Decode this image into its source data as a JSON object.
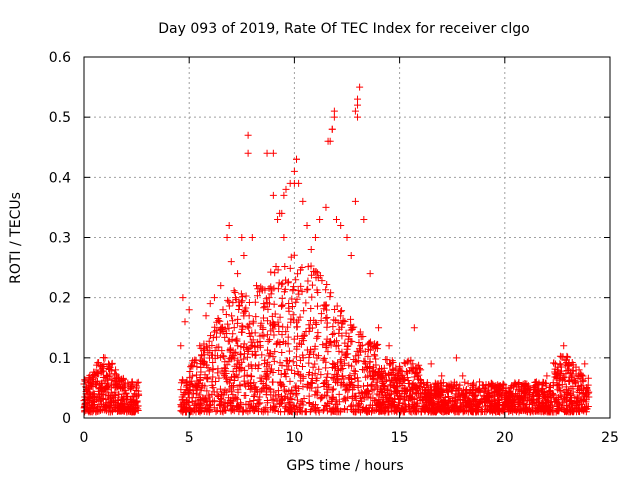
{
  "chart_data": {
    "type": "scatter",
    "title": "Day 093 of 2019, Rate Of TEC Index for receiver clgo",
    "xlabel": "GPS time / hours",
    "ylabel": "ROTI / TECUs",
    "xlim": [
      0,
      25
    ],
    "ylim": [
      0,
      0.6
    ],
    "xticks": [
      "0",
      "5",
      "10",
      "15",
      "20",
      "25"
    ],
    "yticks": [
      "0",
      "0.1",
      "0.2",
      "0.3",
      "0.4",
      "0.5",
      "0.6"
    ],
    "grid": true,
    "marker": "plus",
    "color": "#ff0000",
    "series": [
      {
        "name": "",
        "points": [
          [
            0.1,
            0.04
          ],
          [
            0.3,
            0.06
          ],
          [
            0.5,
            0.03
          ],
          [
            0.8,
            0.08
          ],
          [
            1.0,
            0.1
          ],
          [
            1.1,
            0.07
          ],
          [
            1.3,
            0.05
          ],
          [
            1.5,
            0.08
          ],
          [
            1.8,
            0.06
          ],
          [
            2.0,
            0.04
          ],
          [
            2.3,
            0.06
          ],
          [
            2.5,
            0.05
          ],
          [
            4.6,
            0.12
          ],
          [
            4.7,
            0.2
          ],
          [
            4.8,
            0.16
          ],
          [
            5.0,
            0.18
          ],
          [
            5.2,
            0.04
          ],
          [
            5.5,
            0.12
          ],
          [
            5.8,
            0.17
          ],
          [
            6.0,
            0.19
          ],
          [
            6.2,
            0.2
          ],
          [
            6.5,
            0.22
          ],
          [
            6.8,
            0.3
          ],
          [
            6.9,
            0.32
          ],
          [
            7.0,
            0.26
          ],
          [
            7.2,
            0.2
          ],
          [
            7.3,
            0.24
          ],
          [
            7.5,
            0.3
          ],
          [
            7.6,
            0.27
          ],
          [
            7.8,
            0.47
          ],
          [
            7.8,
            0.44
          ],
          [
            8.0,
            0.3
          ],
          [
            8.2,
            0.22
          ],
          [
            8.5,
            0.15
          ],
          [
            8.8,
            0.2
          ],
          [
            9.0,
            0.44
          ],
          [
            9.0,
            0.37
          ],
          [
            9.2,
            0.33
          ],
          [
            9.4,
            0.34
          ],
          [
            9.5,
            0.3
          ],
          [
            9.6,
            0.38
          ],
          [
            9.8,
            0.39
          ],
          [
            10.0,
            0.41
          ],
          [
            10.1,
            0.43
          ],
          [
            10.2,
            0.39
          ],
          [
            10.4,
            0.36
          ],
          [
            10.6,
            0.32
          ],
          [
            10.8,
            0.28
          ],
          [
            11.0,
            0.3
          ],
          [
            11.2,
            0.33
          ],
          [
            11.5,
            0.35
          ],
          [
            11.7,
            0.46
          ],
          [
            11.8,
            0.48
          ],
          [
            11.9,
            0.51
          ],
          [
            12.0,
            0.33
          ],
          [
            12.2,
            0.32
          ],
          [
            12.5,
            0.3
          ],
          [
            12.7,
            0.27
          ],
          [
            12.9,
            0.36
          ],
          [
            13.0,
            0.5
          ],
          [
            13.0,
            0.53
          ],
          [
            13.1,
            0.55
          ],
          [
            13.3,
            0.33
          ],
          [
            13.6,
            0.24
          ],
          [
            14.0,
            0.15
          ],
          [
            14.5,
            0.12
          ],
          [
            15.0,
            0.08
          ],
          [
            15.7,
            0.15
          ],
          [
            16.0,
            0.08
          ],
          [
            16.5,
            0.09
          ],
          [
            17.0,
            0.07
          ],
          [
            17.7,
            0.1
          ],
          [
            18.0,
            0.07
          ],
          [
            18.8,
            0.06
          ],
          [
            19.5,
            0.05
          ],
          [
            20.0,
            0.04
          ],
          [
            20.8,
            0.05
          ],
          [
            21.5,
            0.06
          ],
          [
            22.0,
            0.07
          ],
          [
            22.5,
            0.08
          ],
          [
            22.8,
            0.12
          ],
          [
            23.2,
            0.07
          ],
          [
            23.8,
            0.09
          ],
          [
            12.9,
            0.51
          ],
          [
            11.6,
            0.46
          ],
          [
            8.7,
            0.44
          ],
          [
            10.1,
            0.43
          ],
          [
            10.0,
            0.39
          ],
          [
            9.5,
            0.37
          ],
          [
            9.3,
            0.34
          ],
          [
            11.9,
            0.5
          ],
          [
            13.0,
            0.52
          ],
          [
            11.8,
            0.48
          ]
        ]
      }
    ]
  }
}
